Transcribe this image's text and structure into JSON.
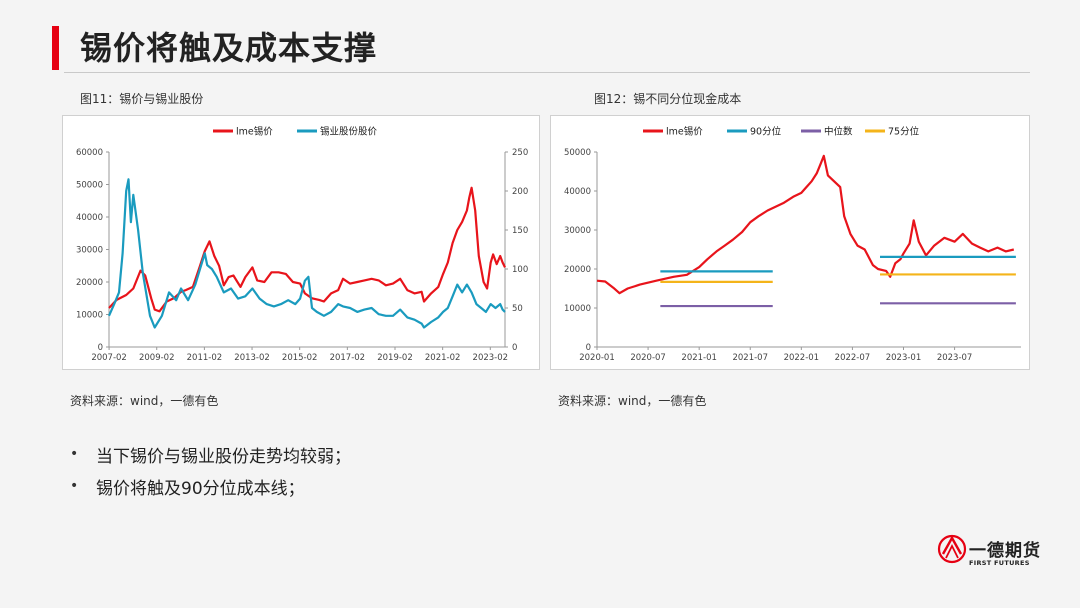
{
  "title": "锡价将触及成本支撑",
  "captions": {
    "left": "图11：锡价与锡业股份",
    "right": "图12：锡不同分位现金成本"
  },
  "sources": {
    "left": "资料来源：wind，一德有色",
    "right": "资料来源：wind，一德有色"
  },
  "bullets": [
    "当下锡价与锡业股份走势均较弱；",
    "锡价将触及90分位成本线；"
  ],
  "bullet_marker": "•",
  "logo": {
    "name": "一德期货",
    "en": "FIRST FUTURES"
  },
  "colors": {
    "accent": "#e60012",
    "red": "#e8141b",
    "teal": "#1a9bbf",
    "purple": "#7c5fa6",
    "yellow": "#f4b41a"
  },
  "chart_data": [
    {
      "type": "line",
      "legend_position": "top",
      "grid": false,
      "x_ticks": [
        "2007-02",
        "2009-02",
        "2011-02",
        "2013-02",
        "2015-02",
        "2017-02",
        "2019-02",
        "2021-02",
        "2023-02"
      ],
      "y_left": {
        "ticks": [
          "0",
          "10000",
          "20000",
          "30000",
          "40000",
          "50000",
          "60000"
        ],
        "lim": [
          0,
          60000
        ]
      },
      "y_right": {
        "ticks": [
          "0",
          "50",
          "100",
          "150",
          "200",
          "250"
        ],
        "lim": [
          0,
          250
        ]
      },
      "x_range": [
        2007.08,
        2023.7
      ],
      "series": [
        {
          "name": "lme锡价",
          "axis": "left",
          "color": "#e8141b",
          "points": [
            [
              2007.08,
              12000
            ],
            [
              2007.4,
              14500
            ],
            [
              2007.8,
              16000
            ],
            [
              2008.1,
              18000
            ],
            [
              2008.4,
              23500
            ],
            [
              2008.6,
              22000
            ],
            [
              2008.85,
              15000
            ],
            [
              2009.0,
              11500
            ],
            [
              2009.2,
              11000
            ],
            [
              2009.5,
              14000
            ],
            [
              2009.8,
              15000
            ],
            [
              2010.1,
              17000
            ],
            [
              2010.3,
              17500
            ],
            [
              2010.6,
              18500
            ],
            [
              2010.9,
              25000
            ],
            [
              2011.1,
              29500
            ],
            [
              2011.3,
              32500
            ],
            [
              2011.5,
              28000
            ],
            [
              2011.7,
              25000
            ],
            [
              2011.9,
              19000
            ],
            [
              2012.1,
              21500
            ],
            [
              2012.3,
              22000
            ],
            [
              2012.6,
              18500
            ],
            [
              2012.8,
              21500
            ],
            [
              2013.1,
              24500
            ],
            [
              2013.3,
              20500
            ],
            [
              2013.6,
              20000
            ],
            [
              2013.9,
              23000
            ],
            [
              2014.2,
              23000
            ],
            [
              2014.5,
              22500
            ],
            [
              2014.8,
              20000
            ],
            [
              2015.1,
              19500
            ],
            [
              2015.3,
              16500
            ],
            [
              2015.6,
              15000
            ],
            [
              2015.9,
              14500
            ],
            [
              2016.1,
              14000
            ],
            [
              2016.4,
              16500
            ],
            [
              2016.7,
              17500
            ],
            [
              2016.9,
              21000
            ],
            [
              2017.2,
              19500
            ],
            [
              2017.5,
              20000
            ],
            [
              2017.8,
              20500
            ],
            [
              2018.1,
              21000
            ],
            [
              2018.4,
              20500
            ],
            [
              2018.7,
              19000
            ],
            [
              2019.0,
              19500
            ],
            [
              2019.3,
              21000
            ],
            [
              2019.6,
              17500
            ],
            [
              2019.9,
              16500
            ],
            [
              2020.2,
              17000
            ],
            [
              2020.3,
              14000
            ],
            [
              2020.6,
              16500
            ],
            [
              2020.9,
              18500
            ],
            [
              2021.1,
              22500
            ],
            [
              2021.3,
              26000
            ],
            [
              2021.5,
              32000
            ],
            [
              2021.7,
              36000
            ],
            [
              2021.9,
              38500
            ],
            [
              2022.1,
              42000
            ],
            [
              2022.2,
              46000
            ],
            [
              2022.3,
              49000
            ],
            [
              2022.45,
              42000
            ],
            [
              2022.6,
              28000
            ],
            [
              2022.8,
              20000
            ],
            [
              2022.95,
              18000
            ],
            [
              2023.1,
              26000
            ],
            [
              2023.2,
              28500
            ],
            [
              2023.35,
              25500
            ],
            [
              2023.5,
              28000
            ],
            [
              2023.6,
              26000
            ],
            [
              2023.7,
              24500
            ]
          ]
        },
        {
          "name": "锡业股份股价",
          "axis": "right",
          "color": "#1a9bbf",
          "points": [
            [
              2007.08,
              40
            ],
            [
              2007.3,
              55
            ],
            [
              2007.5,
              70
            ],
            [
              2007.65,
              120
            ],
            [
              2007.8,
              200
            ],
            [
              2007.9,
              215
            ],
            [
              2008.0,
              160
            ],
            [
              2008.1,
              195
            ],
            [
              2008.3,
              150
            ],
            [
              2008.5,
              95
            ],
            [
              2008.8,
              40
            ],
            [
              2009.0,
              25
            ],
            [
              2009.3,
              40
            ],
            [
              2009.6,
              70
            ],
            [
              2009.9,
              60
            ],
            [
              2010.1,
              75
            ],
            [
              2010.4,
              60
            ],
            [
              2010.7,
              80
            ],
            [
              2010.9,
              100
            ],
            [
              2011.1,
              120
            ],
            [
              2011.2,
              105
            ],
            [
              2011.4,
              100
            ],
            [
              2011.6,
              90
            ],
            [
              2011.9,
              70
            ],
            [
              2012.2,
              75
            ],
            [
              2012.5,
              62
            ],
            [
              2012.8,
              65
            ],
            [
              2013.1,
              75
            ],
            [
              2013.4,
              62
            ],
            [
              2013.7,
              55
            ],
            [
              2014.0,
              52
            ],
            [
              2014.3,
              55
            ],
            [
              2014.6,
              60
            ],
            [
              2014.9,
              55
            ],
            [
              2015.1,
              62
            ],
            [
              2015.3,
              85
            ],
            [
              2015.45,
              90
            ],
            [
              2015.6,
              50
            ],
            [
              2015.8,
              45
            ],
            [
              2016.1,
              40
            ],
            [
              2016.4,
              45
            ],
            [
              2016.7,
              55
            ],
            [
              2016.9,
              52
            ],
            [
              2017.2,
              50
            ],
            [
              2017.5,
              45
            ],
            [
              2017.8,
              48
            ],
            [
              2018.1,
              50
            ],
            [
              2018.4,
              42
            ],
            [
              2018.7,
              40
            ],
            [
              2019.0,
              40
            ],
            [
              2019.3,
              48
            ],
            [
              2019.6,
              38
            ],
            [
              2019.9,
              35
            ],
            [
              2020.2,
              30
            ],
            [
              2020.3,
              25
            ],
            [
              2020.6,
              32
            ],
            [
              2020.9,
              38
            ],
            [
              2021.1,
              45
            ],
            [
              2021.3,
              50
            ],
            [
              2021.5,
              65
            ],
            [
              2021.7,
              80
            ],
            [
              2021.9,
              70
            ],
            [
              2022.1,
              80
            ],
            [
              2022.3,
              70
            ],
            [
              2022.5,
              55
            ],
            [
              2022.7,
              50
            ],
            [
              2022.9,
              45
            ],
            [
              2023.1,
              55
            ],
            [
              2023.3,
              50
            ],
            [
              2023.5,
              55
            ],
            [
              2023.6,
              48
            ],
            [
              2023.7,
              45
            ]
          ]
        }
      ]
    },
    {
      "type": "line",
      "legend_position": "top",
      "grid": false,
      "x_ticks": [
        "2020-01",
        "2020-07",
        "2021-01",
        "2021-07",
        "2022-01",
        "2022-07",
        "2023-01",
        "2023-07"
      ],
      "y_left": {
        "ticks": [
          "0",
          "10000",
          "20000",
          "30000",
          "40000",
          "50000"
        ],
        "lim": [
          0,
          50000
        ]
      },
      "x_range": [
        2020.0,
        2024.15
      ],
      "series": [
        {
          "name": "lme锡价",
          "color": "#e8141b",
          "points": [
            [
              2020.0,
              17000
            ],
            [
              2020.08,
              16800
            ],
            [
              2020.16,
              15200
            ],
            [
              2020.22,
              13800
            ],
            [
              2020.3,
              15000
            ],
            [
              2020.42,
              16000
            ],
            [
              2020.58,
              17000
            ],
            [
              2020.75,
              18000
            ],
            [
              2020.88,
              18500
            ],
            [
              2021.0,
              20500
            ],
            [
              2021.08,
              22500
            ],
            [
              2021.17,
              24500
            ],
            [
              2021.25,
              26000
            ],
            [
              2021.33,
              27500
            ],
            [
              2021.42,
              29500
            ],
            [
              2021.5,
              32000
            ],
            [
              2021.58,
              33500
            ],
            [
              2021.67,
              35000
            ],
            [
              2021.75,
              36000
            ],
            [
              2021.83,
              37000
            ],
            [
              2021.92,
              38500
            ],
            [
              2022.0,
              39500
            ],
            [
              2022.05,
              41000
            ],
            [
              2022.1,
              42500
            ],
            [
              2022.15,
              44500
            ],
            [
              2022.19,
              47000
            ],
            [
              2022.22,
              49000
            ],
            [
              2022.26,
              44000
            ],
            [
              2022.3,
              43000
            ],
            [
              2022.38,
              41000
            ],
            [
              2022.42,
              33500
            ],
            [
              2022.48,
              29000
            ],
            [
              2022.55,
              26000
            ],
            [
              2022.62,
              25000
            ],
            [
              2022.7,
              21000
            ],
            [
              2022.75,
              20000
            ],
            [
              2022.83,
              19500
            ],
            [
              2022.87,
              18000
            ],
            [
              2022.92,
              21500
            ],
            [
              2022.97,
              22500
            ],
            [
              2023.0,
              24000
            ],
            [
              2023.06,
              26500
            ],
            [
              2023.1,
              32500
            ],
            [
              2023.15,
              27000
            ],
            [
              2023.22,
              23500
            ],
            [
              2023.3,
              26000
            ],
            [
              2023.4,
              28000
            ],
            [
              2023.5,
              27000
            ],
            [
              2023.58,
              29000
            ],
            [
              2023.67,
              26500
            ],
            [
              2023.75,
              25500
            ],
            [
              2023.83,
              24500
            ],
            [
              2023.92,
              25500
            ],
            [
              2024.0,
              24500
            ],
            [
              2024.08,
              25000
            ]
          ]
        },
        {
          "name": "90分位",
          "color": "#1a9bbf",
          "segments": [
            {
              "x": [
                2020.62,
                2021.72
              ],
              "y": 19400
            },
            {
              "x": [
                2022.77,
                2024.1
              ],
              "y": 23100
            }
          ]
        },
        {
          "name": "中位数",
          "color": "#7c5fa6",
          "segments": [
            {
              "x": [
                2020.62,
                2021.72
              ],
              "y": 10500
            },
            {
              "x": [
                2022.77,
                2024.1
              ],
              "y": 11200
            }
          ]
        },
        {
          "name": "75分位",
          "color": "#f4b41a",
          "segments": [
            {
              "x": [
                2020.62,
                2021.72
              ],
              "y": 16700
            },
            {
              "x": [
                2022.77,
                2024.1
              ],
              "y": 18600
            }
          ]
        }
      ]
    }
  ]
}
